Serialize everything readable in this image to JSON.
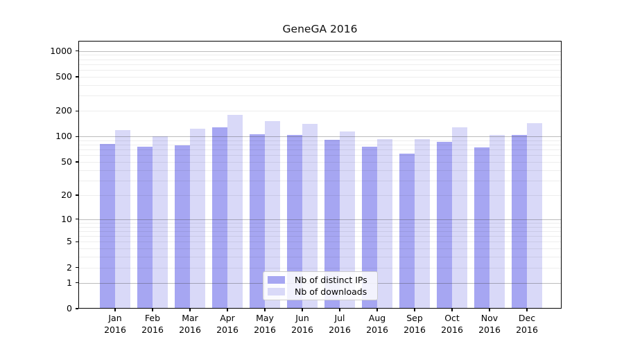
{
  "figure": {
    "background": "#ffffff"
  },
  "chart_data": {
    "type": "bar",
    "title": "GeneGA 2016",
    "year": "2016",
    "categories": [
      "Jan",
      "Feb",
      "Mar",
      "Apr",
      "May",
      "Jun",
      "Jul",
      "Aug",
      "Sep",
      "Oct",
      "Nov",
      "Dec"
    ],
    "series": [
      {
        "name": "Nb of distinct IPs",
        "color": "#a6a6f2",
        "values": [
          81,
          76,
          79,
          128,
          107,
          105,
          92,
          76,
          63,
          87,
          74,
          105
        ]
      },
      {
        "name": "Nb of downloads",
        "color": "#d9d9f8",
        "values": [
          118,
          101,
          123,
          178,
          151,
          140,
          115,
          94,
          94,
          128,
          105,
          144
        ]
      }
    ],
    "yscale": "log10(value+1)",
    "yticks": [
      0,
      1,
      2,
      5,
      10,
      20,
      50,
      100,
      200,
      500,
      1000
    ],
    "ylim": [
      0,
      1300
    ],
    "grid": "horizontal major at 1/10/100/1000, faint log minors",
    "legend_position": "inside-bottom-center",
    "axis_color": "#000000",
    "major_grid_color": "#b9b9b9",
    "minor_grid_color": "#ededed"
  }
}
